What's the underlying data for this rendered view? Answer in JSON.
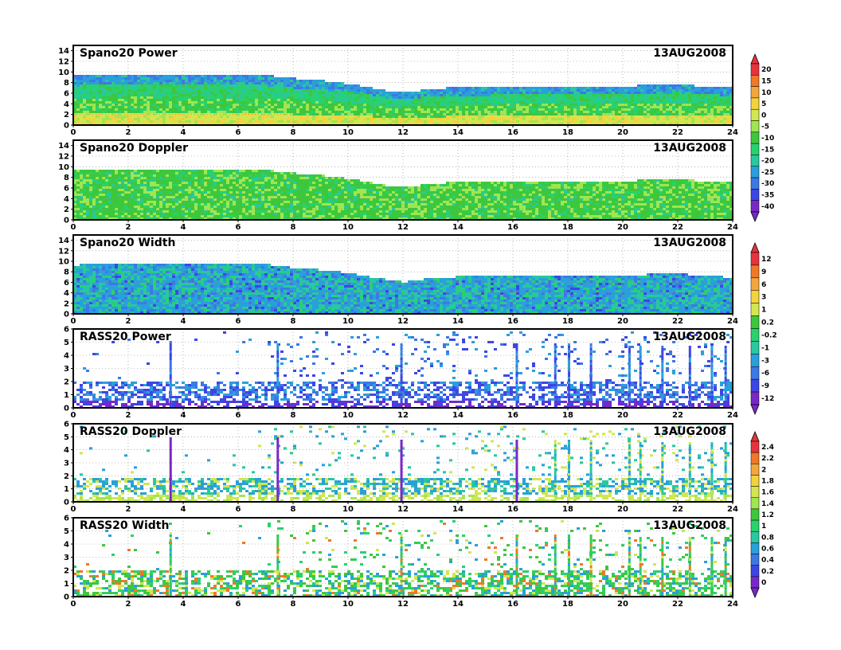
{
  "chart_data": [
    {
      "type": "heatmap",
      "title": "Spano20 Power",
      "date_label": "13AUG2008",
      "xlim": [
        0,
        24
      ],
      "ylim": [
        0,
        15
      ],
      "x_ticks": [
        "0",
        "2",
        "4",
        "6",
        "8",
        "10",
        "12",
        "14",
        "16",
        "18",
        "20",
        "22",
        "24"
      ],
      "y_ticks": [
        "0",
        "2",
        "4",
        "6",
        "8",
        "10",
        "12",
        "14"
      ],
      "grid": true,
      "echo_top_km": [
        [
          0,
          9.5
        ],
        [
          1,
          9.8
        ],
        [
          2,
          9.9
        ],
        [
          3,
          9.8
        ],
        [
          4,
          9.9
        ],
        [
          5,
          9.8
        ],
        [
          6,
          9.7
        ],
        [
          7,
          9.6
        ],
        [
          8,
          9.0
        ],
        [
          9,
          8.6
        ],
        [
          10,
          8.0
        ],
        [
          11,
          7.0
        ],
        [
          12,
          6.3
        ],
        [
          13,
          7.1
        ],
        [
          14,
          7.3
        ],
        [
          15,
          7.3
        ],
        [
          16,
          7.4
        ],
        [
          17,
          7.5
        ],
        [
          18,
          7.6
        ],
        [
          19,
          7.6
        ],
        [
          20,
          7.5
        ],
        [
          21,
          7.8
        ],
        [
          22,
          7.9
        ],
        [
          23,
          7.4
        ],
        [
          24,
          7.2
        ]
      ]
    },
    {
      "type": "heatmap",
      "title": "Spano20 Doppler",
      "date_label": "13AUG2008",
      "xlim": [
        0,
        24
      ],
      "ylim": [
        0,
        15
      ],
      "x_ticks": [
        "0",
        "2",
        "4",
        "6",
        "8",
        "10",
        "12",
        "14",
        "16",
        "18",
        "20",
        "22",
        "24"
      ],
      "y_ticks": [
        "0",
        "2",
        "4",
        "6",
        "8",
        "10",
        "12",
        "14"
      ],
      "grid": true,
      "echo_top_km": [
        [
          0,
          9.5
        ],
        [
          1,
          9.8
        ],
        [
          2,
          9.9
        ],
        [
          3,
          9.8
        ],
        [
          4,
          9.9
        ],
        [
          5,
          9.8
        ],
        [
          6,
          9.7
        ],
        [
          7,
          9.6
        ],
        [
          8,
          9.0
        ],
        [
          9,
          8.6
        ],
        [
          10,
          8.0
        ],
        [
          11,
          7.0
        ],
        [
          12,
          6.3
        ],
        [
          13,
          7.1
        ],
        [
          14,
          7.3
        ],
        [
          15,
          7.3
        ],
        [
          16,
          7.4
        ],
        [
          17,
          7.5
        ],
        [
          18,
          7.6
        ],
        [
          19,
          7.6
        ],
        [
          20,
          7.5
        ],
        [
          21,
          7.8
        ],
        [
          22,
          7.9
        ],
        [
          23,
          7.4
        ],
        [
          24,
          7.2
        ]
      ]
    },
    {
      "type": "heatmap",
      "title": "Spano20 Width",
      "date_label": "13AUG2008",
      "xlim": [
        0,
        24
      ],
      "ylim": [
        0,
        15
      ],
      "x_ticks": [
        "0",
        "2",
        "4",
        "6",
        "8",
        "10",
        "12",
        "14",
        "16",
        "18",
        "20",
        "22",
        "24"
      ],
      "y_ticks": [
        "0",
        "2",
        "4",
        "6",
        "8",
        "10",
        "12",
        "14"
      ],
      "grid": true,
      "echo_top_km": [
        [
          0,
          9.5
        ],
        [
          1,
          9.8
        ],
        [
          2,
          9.9
        ],
        [
          3,
          9.8
        ],
        [
          4,
          9.9
        ],
        [
          5,
          9.8
        ],
        [
          6,
          9.7
        ],
        [
          7,
          9.6
        ],
        [
          8,
          9.0
        ],
        [
          9,
          8.6
        ],
        [
          10,
          8.0
        ],
        [
          11,
          7.0
        ],
        [
          12,
          6.3
        ],
        [
          13,
          7.1
        ],
        [
          14,
          7.3
        ],
        [
          15,
          7.3
        ],
        [
          16,
          7.4
        ],
        [
          17,
          7.5
        ],
        [
          18,
          7.6
        ],
        [
          19,
          7.6
        ],
        [
          20,
          7.5
        ],
        [
          21,
          7.8
        ],
        [
          22,
          7.9
        ],
        [
          23,
          7.4
        ],
        [
          24,
          7.2
        ]
      ]
    },
    {
      "type": "heatmap",
      "title": "RASS20 Power",
      "date_label": "13AUG2008",
      "xlim": [
        0,
        24
      ],
      "ylim": [
        0,
        6
      ],
      "x_ticks": [
        "0",
        "2",
        "4",
        "6",
        "8",
        "10",
        "12",
        "14",
        "16",
        "18",
        "20",
        "22",
        "24"
      ],
      "y_ticks": [
        "0",
        "1",
        "2",
        "3",
        "4",
        "5",
        "6"
      ],
      "grid": true,
      "vertical_streaks_hours": [
        3.5,
        7.4,
        11.9,
        16.1,
        17.5,
        18.0,
        18.8,
        20.2,
        20.6,
        21.4,
        22.4,
        23.2,
        23.7
      ]
    },
    {
      "type": "heatmap",
      "title": "RASS20 Doppler",
      "date_label": "13AUG2008",
      "xlim": [
        0,
        24
      ],
      "ylim": [
        0,
        6
      ],
      "x_ticks": [
        "0",
        "2",
        "4",
        "6",
        "8",
        "10",
        "12",
        "14",
        "16",
        "18",
        "20",
        "22",
        "24"
      ],
      "y_ticks": [
        "0",
        "1",
        "2",
        "3",
        "4",
        "5",
        "6"
      ],
      "grid": true,
      "vertical_streaks_hours": [
        3.5,
        7.4,
        11.9,
        16.1,
        17.5,
        18.0,
        18.8,
        20.2,
        20.6,
        21.4,
        22.4,
        23.2,
        23.7
      ]
    },
    {
      "type": "heatmap",
      "title": "RASS20 Width",
      "date_label": "13AUG2008",
      "xlim": [
        0,
        24
      ],
      "ylim": [
        0,
        6
      ],
      "x_ticks": [
        "0",
        "2",
        "4",
        "6",
        "8",
        "10",
        "12",
        "14",
        "16",
        "18",
        "20",
        "22",
        "24"
      ],
      "y_ticks": [
        "0",
        "1",
        "2",
        "3",
        "4",
        "5",
        "6"
      ],
      "grid": true,
      "vertical_streaks_hours": [
        3.5,
        7.4,
        11.9,
        16.1,
        17.5,
        18.0,
        18.8,
        20.2,
        20.6,
        21.4,
        22.4,
        23.2,
        23.7
      ]
    }
  ],
  "colorbars": [
    {
      "labels": [
        "20",
        "15",
        "10",
        "5",
        "0",
        "-5",
        "-10",
        "-15",
        "-20",
        "-25",
        "-30",
        "-35",
        "-40"
      ],
      "colors": [
        "#e8323c",
        "#f07828",
        "#f4a63c",
        "#f4d23c",
        "#d2e650",
        "#a0e650",
        "#3cc83c",
        "#28d26e",
        "#28c8a0",
        "#28a0dc",
        "#3c78e6",
        "#3c46e6",
        "#7828c8"
      ]
    },
    {
      "labels": [
        "12",
        "9",
        "6",
        "3",
        "1",
        "0.2",
        "-0.2",
        "-1",
        "-3",
        "-6",
        "-9",
        "-12"
      ],
      "colors": [
        "#e8323c",
        "#f07828",
        "#f4a63c",
        "#f4d23c",
        "#d2e650",
        "#3cc83c",
        "#28d26e",
        "#28c8a0",
        "#28a0dc",
        "#3c78e6",
        "#3c46e6",
        "#7828c8"
      ]
    },
    {
      "labels": [
        "2.4",
        "2.2",
        "2",
        "1.8",
        "1.6",
        "1.4",
        "1.2",
        "1",
        "0.8",
        "0.6",
        "0.4",
        "0.2",
        "0"
      ],
      "colors": [
        "#e8323c",
        "#f07828",
        "#f4a63c",
        "#f4d23c",
        "#d2e650",
        "#a0e650",
        "#3cc83c",
        "#28d26e",
        "#28c8a0",
        "#28a0dc",
        "#3c78e6",
        "#3c46e6",
        "#7828c8"
      ]
    }
  ]
}
